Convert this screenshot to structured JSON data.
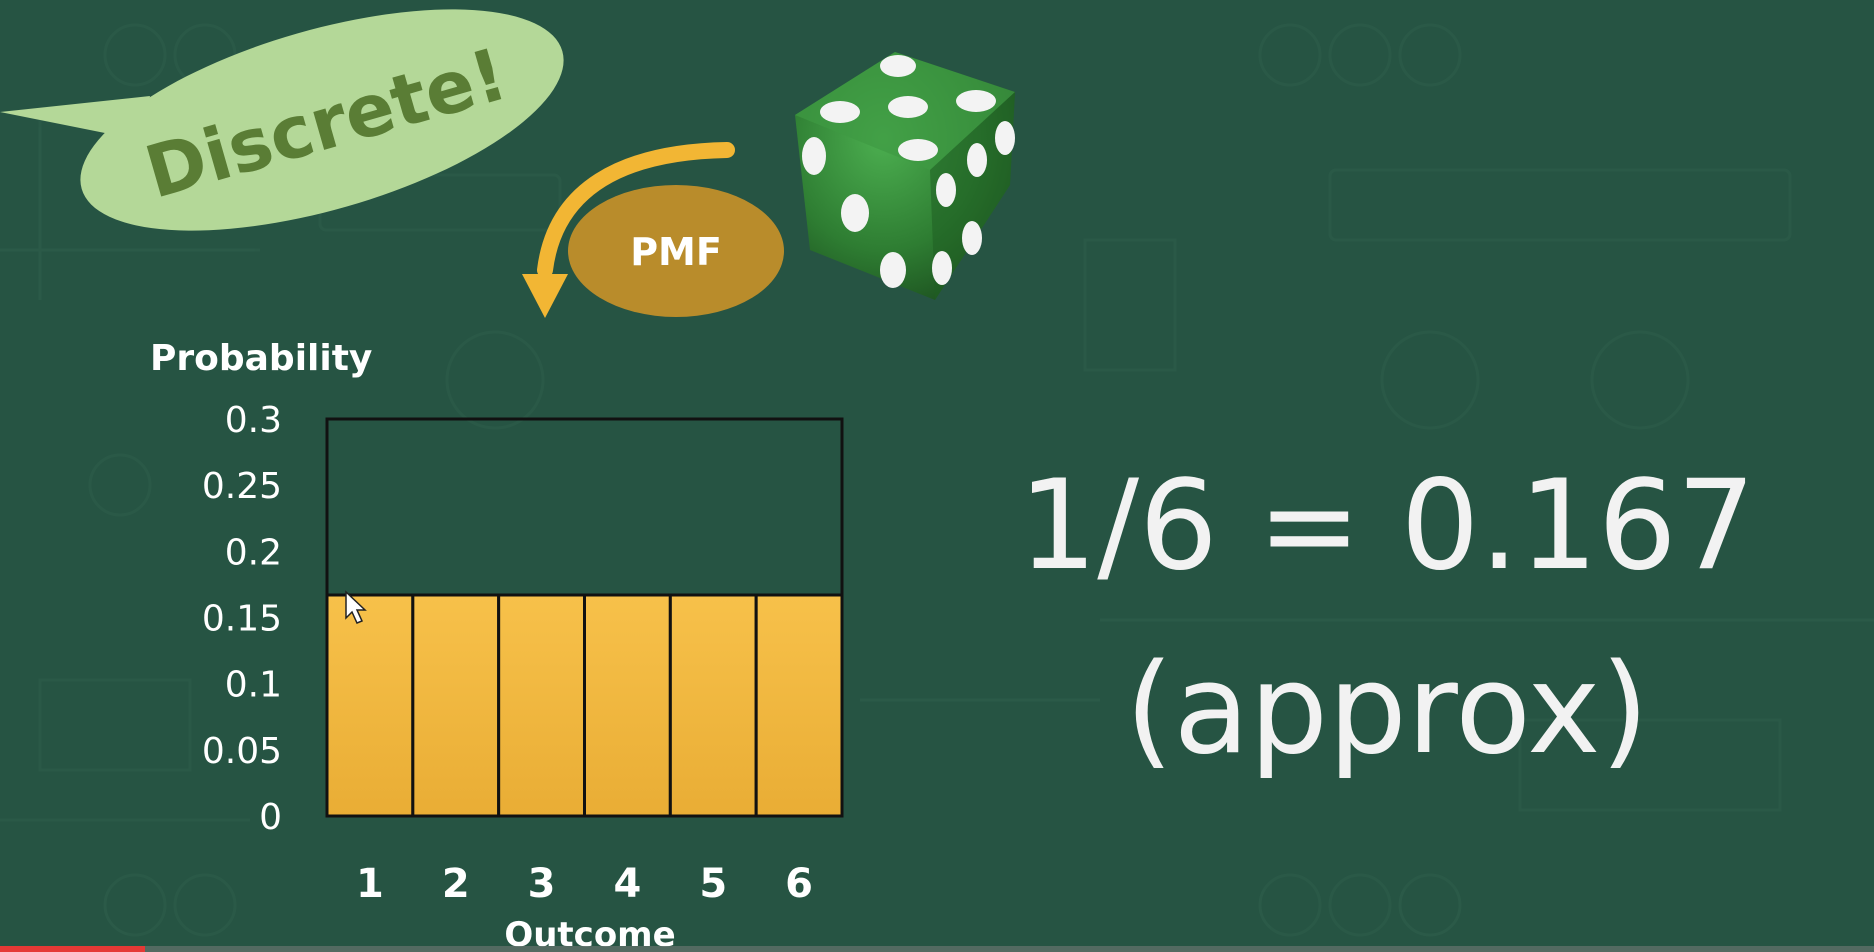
{
  "callout": {
    "text": "Discrete!"
  },
  "arrow_label": {
    "text": "PMF"
  },
  "annotation": {
    "line1": "1/6 = 0.167",
    "line2": "(approx)"
  },
  "colors": {
    "background": "#265443",
    "bar_fill": "#f5bd45",
    "bar_outline": "#111111",
    "callout_fill": "#b4d898",
    "pmf_fill": "#b98c2b",
    "arrow": "#f2b634",
    "die": "#2e7d32",
    "progress": "#e53935"
  },
  "icons": {
    "die": "die-icon",
    "cursor": "mouse-cursor-icon",
    "arrow": "curved-arrow-icon"
  },
  "chart_data": {
    "type": "bar",
    "categories": [
      "1",
      "2",
      "3",
      "4",
      "5",
      "6"
    ],
    "values": [
      0.167,
      0.167,
      0.167,
      0.167,
      0.167,
      0.167
    ],
    "title": "",
    "xlabel": "Outcome",
    "ylabel": "Probability",
    "ylim": [
      0,
      0.3
    ],
    "yticks": [
      "0",
      "0.05",
      "0.1",
      "0.15",
      "0.2",
      "0.25",
      "0.3"
    ],
    "grid": false,
    "legend": "none"
  }
}
